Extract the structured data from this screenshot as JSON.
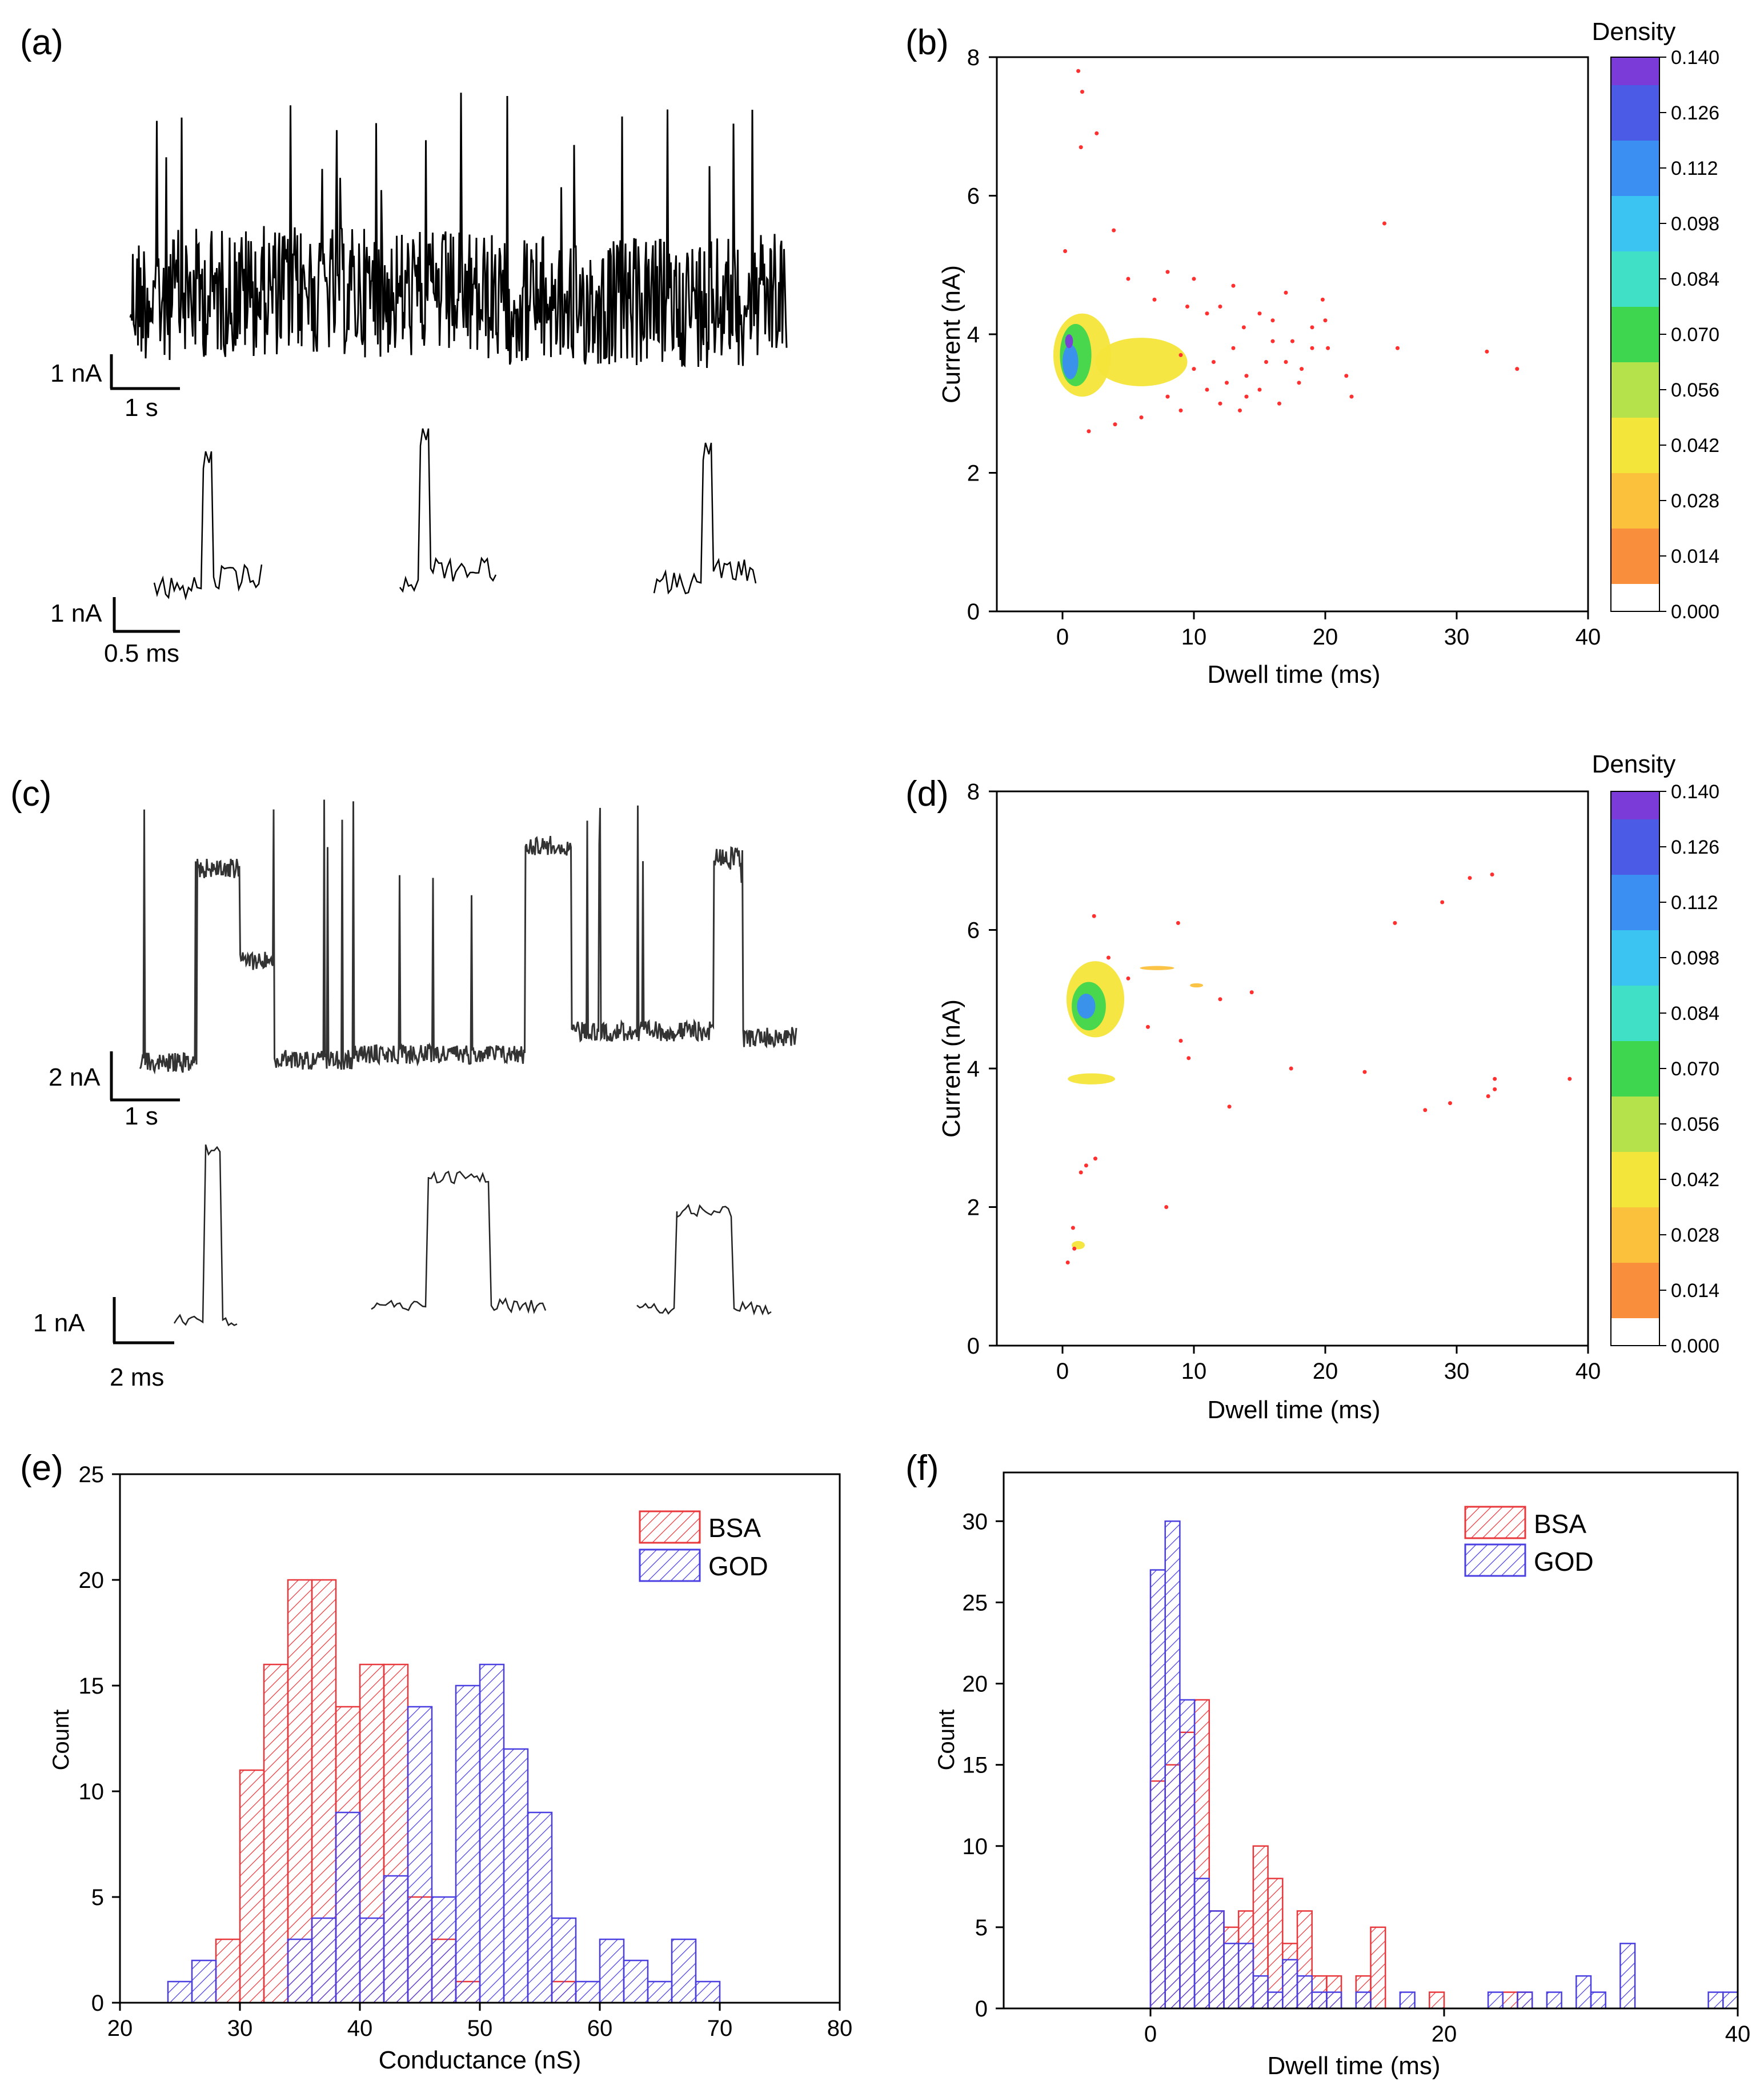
{
  "panels": {
    "a": {
      "label": "(a)"
    },
    "b": {
      "label": "(b)"
    },
    "c": {
      "label": "(c)"
    },
    "d": {
      "label": "(d)"
    },
    "e": {
      "label": "(e)"
    },
    "f": {
      "label": "(f)"
    }
  },
  "colors": {
    "bsa": "#e8383c",
    "god": "#4a3fe0",
    "overlap": "#5a1a7a",
    "trace_a": "#000000",
    "trace_c": "#333333",
    "scatter_point": "#ff3030",
    "dark_point": "#1a1a1a"
  },
  "chart_data": [
    {
      "id": "a",
      "type": "line",
      "description_label": "current trace",
      "scale_bars": {
        "main": {
          "current": "1 nA",
          "time": "1 s"
        },
        "events": {
          "current": "1 nA",
          "time": "0.5 ms"
        }
      }
    },
    {
      "id": "b",
      "type": "heatmap",
      "xlabel": "Dwell time (ms)",
      "ylabel": "Current (nA)",
      "xlim": [
        -5,
        40
      ],
      "ylim": [
        0,
        8
      ],
      "xticks": [
        0,
        10,
        20,
        30,
        40
      ],
      "yticks": [
        0,
        2,
        4,
        6,
        8
      ],
      "colorbar": {
        "title": "Density",
        "ticks": [
          "0.000",
          "0.014",
          "0.028",
          "0.042",
          "0.056",
          "0.070",
          "0.084",
          "0.098",
          "0.112",
          "0.126",
          "0.140"
        ],
        "levels": [
          0,
          0.014,
          0.028,
          0.042,
          0.056,
          0.07,
          0.084,
          0.098,
          0.112,
          0.126,
          0.14
        ]
      },
      "density_blobs": [
        {
          "x": 1.5,
          "y": 3.7,
          "sx": 2.2,
          "sy": 0.6,
          "level": 0.03
        },
        {
          "x": 6,
          "y": 3.6,
          "sx": 3.5,
          "sy": 0.35,
          "level": 0.028
        },
        {
          "x": 1.0,
          "y": 3.7,
          "sx": 1.2,
          "sy": 0.45,
          "level": 0.06
        },
        {
          "x": 0.6,
          "y": 3.6,
          "sx": 0.6,
          "sy": 0.25,
          "level": 0.1
        },
        {
          "x": 0.5,
          "y": 3.9,
          "sx": 0.3,
          "sy": 0.1,
          "level": 0.13
        }
      ],
      "scatter": [
        [
          1.2,
          7.8
        ],
        [
          1.5,
          7.5
        ],
        [
          2.6,
          6.9
        ],
        [
          1.4,
          6.7
        ],
        [
          0.2,
          5.2
        ],
        [
          3.9,
          5.5
        ],
        [
          24.5,
          5.6
        ],
        [
          5,
          4.8
        ],
        [
          8,
          4.9
        ],
        [
          10,
          4.8
        ],
        [
          13,
          4.7
        ],
        [
          17,
          4.6
        ],
        [
          19.8,
          4.5
        ],
        [
          12,
          4.4
        ],
        [
          15,
          4.3
        ],
        [
          20,
          4.2
        ],
        [
          9,
          3.7
        ],
        [
          10,
          3.5
        ],
        [
          11.5,
          3.6
        ],
        [
          13,
          3.8
        ],
        [
          14,
          3.4
        ],
        [
          15,
          3.2
        ],
        [
          16,
          3.9
        ],
        [
          17,
          3.6
        ],
        [
          18,
          3.3
        ],
        [
          19,
          3.8
        ],
        [
          20.2,
          3.8
        ],
        [
          21.6,
          3.4
        ],
        [
          22,
          3.1
        ],
        [
          25.5,
          3.8
        ],
        [
          32.3,
          3.75
        ],
        [
          34.6,
          3.5
        ],
        [
          12,
          3.0
        ],
        [
          13.5,
          2.9
        ],
        [
          9,
          2.9
        ],
        [
          8,
          3.1
        ],
        [
          6,
          2.8
        ],
        [
          4,
          2.7
        ],
        [
          2,
          2.6
        ],
        [
          14,
          3.1
        ],
        [
          16.5,
          3.0
        ],
        [
          18.2,
          3.5
        ],
        [
          11,
          3.2
        ],
        [
          12.5,
          3.3
        ],
        [
          15.5,
          3.6
        ],
        [
          17.5,
          3.9
        ],
        [
          19,
          4.1
        ],
        [
          7,
          4.5
        ],
        [
          9.5,
          4.4
        ],
        [
          11,
          4.3
        ],
        [
          13.8,
          4.1
        ],
        [
          16,
          4.2
        ]
      ]
    },
    {
      "id": "c",
      "type": "line",
      "description_label": "current trace",
      "scale_bars": {
        "main": {
          "current": "2 nA",
          "time": "1 s"
        },
        "events": {
          "current": "1 nA",
          "time": "2 ms"
        }
      }
    },
    {
      "id": "d",
      "type": "heatmap",
      "xlabel": "Dwell time (ms)",
      "ylabel": "Current (nA)",
      "xlim": [
        -5,
        40
      ],
      "ylim": [
        0,
        8
      ],
      "xticks": [
        0,
        10,
        20,
        30,
        40
      ],
      "yticks": [
        0,
        2,
        4,
        6,
        8
      ],
      "colorbar": {
        "title": "Density",
        "ticks": [
          "0.000",
          "0.014",
          "0.028",
          "0.042",
          "0.056",
          "0.070",
          "0.084",
          "0.098",
          "0.112",
          "0.126",
          "0.140"
        ],
        "levels": [
          0,
          0.014,
          0.028,
          0.042,
          0.056,
          0.07,
          0.084,
          0.098,
          0.112,
          0.126,
          0.14
        ]
      },
      "density_blobs": [
        {
          "x": 2.5,
          "y": 5.0,
          "sx": 2.2,
          "sy": 0.55,
          "level": 0.03
        },
        {
          "x": 2.0,
          "y": 4.9,
          "sx": 1.3,
          "sy": 0.35,
          "level": 0.06
        },
        {
          "x": 1.8,
          "y": 4.9,
          "sx": 0.7,
          "sy": 0.18,
          "level": 0.1
        },
        {
          "x": 2.2,
          "y": 3.85,
          "sx": 1.8,
          "sy": 0.08,
          "level": 0.03
        },
        {
          "x": 1.2,
          "y": 1.45,
          "sx": 0.5,
          "sy": 0.06,
          "level": 0.03
        },
        {
          "x": 7.2,
          "y": 5.45,
          "sx": 1.3,
          "sy": 0.03,
          "level": 0.025
        },
        {
          "x": 10.2,
          "y": 5.2,
          "sx": 0.5,
          "sy": 0.03,
          "level": 0.025
        }
      ],
      "scatter": [
        [
          2.4,
          6.2
        ],
        [
          8.8,
          6.1
        ],
        [
          25.3,
          6.1
        ],
        [
          28.9,
          6.4
        ],
        [
          31,
          6.75
        ],
        [
          32.7,
          6.8
        ],
        [
          1.8,
          2.6
        ],
        [
          1.4,
          2.5
        ],
        [
          2.5,
          2.7
        ],
        [
          7.9,
          2.0
        ],
        [
          0.4,
          1.2
        ],
        [
          0.8,
          1.7
        ],
        [
          0.9,
          1.4
        ],
        [
          3.5,
          5.6
        ],
        [
          5,
          5.3
        ],
        [
          6.5,
          4.6
        ],
        [
          9,
          4.4
        ],
        [
          12,
          5
        ],
        [
          14.4,
          5.1
        ],
        [
          17.4,
          4.0
        ],
        [
          23,
          3.95
        ],
        [
          27.6,
          3.4
        ],
        [
          29.5,
          3.5
        ],
        [
          32.4,
          3.6
        ],
        [
          32.9,
          3.7
        ],
        [
          32.9,
          3.85
        ],
        [
          38.6,
          3.85
        ],
        [
          12.7,
          3.45
        ],
        [
          9.6,
          4.15
        ]
      ]
    },
    {
      "id": "e",
      "type": "bar",
      "xlabel": "Conductance (nS)",
      "ylabel": "Count",
      "xlim": [
        20,
        80
      ],
      "ylim": [
        0,
        25
      ],
      "xticks": [
        20,
        30,
        40,
        50,
        60,
        70,
        80
      ],
      "yticks": [
        0,
        5,
        10,
        15,
        20,
        25
      ],
      "bin_width": 2,
      "legend": [
        "BSA",
        "GOD"
      ],
      "legend_position": "top-right",
      "series": [
        {
          "name": "BSA",
          "bins": [
            [
              28,
              3
            ],
            [
              30,
              11
            ],
            [
              32,
              16
            ],
            [
              34,
              20
            ],
            [
              36,
              20
            ],
            [
              38,
              14
            ],
            [
              40,
              16
            ],
            [
              42,
              16
            ],
            [
              44,
              5
            ],
            [
              46,
              3
            ],
            [
              48,
              1
            ],
            [
              56,
              1
            ]
          ]
        },
        {
          "name": "GOD",
          "bins": [
            [
              24,
              1
            ],
            [
              26,
              2
            ],
            [
              34,
              3
            ],
            [
              36,
              4
            ],
            [
              38,
              9
            ],
            [
              40,
              4
            ],
            [
              42,
              6
            ],
            [
              44,
              14
            ],
            [
              46,
              5
            ],
            [
              48,
              15
            ],
            [
              50,
              16
            ],
            [
              52,
              12
            ],
            [
              54,
              9
            ],
            [
              56,
              4
            ],
            [
              58,
              1
            ],
            [
              60,
              3
            ],
            [
              62,
              2
            ],
            [
              64,
              1
            ],
            [
              66,
              3
            ],
            [
              68,
              1
            ]
          ]
        }
      ]
    },
    {
      "id": "f",
      "type": "bar",
      "xlabel": "Dwell time (ms)",
      "ylabel": "Count",
      "xlim": [
        -10,
        40
      ],
      "ylim": [
        0,
        33
      ],
      "xticks": [
        0,
        20,
        40
      ],
      "yticks": [
        0,
        5,
        10,
        15,
        20,
        25,
        30
      ],
      "bin_width": 1,
      "legend": [
        "BSA",
        "GOD"
      ],
      "legend_position": "top-right",
      "series": [
        {
          "name": "BSA",
          "bins": [
            [
              0,
              14
            ],
            [
              1,
              15
            ],
            [
              2,
              17
            ],
            [
              3,
              19
            ],
            [
              4,
              6
            ],
            [
              5,
              5
            ],
            [
              6,
              6
            ],
            [
              7,
              10
            ],
            [
              8,
              8
            ],
            [
              9,
              4
            ],
            [
              10,
              6
            ],
            [
              11,
              2
            ],
            [
              12,
              2
            ],
            [
              14,
              2
            ],
            [
              15,
              5
            ],
            [
              19,
              1
            ],
            [
              24,
              1
            ],
            [
              25,
              1
            ]
          ]
        },
        {
          "name": "GOD",
          "bins": [
            [
              0,
              27
            ],
            [
              1,
              30
            ],
            [
              2,
              19
            ],
            [
              3,
              8
            ],
            [
              4,
              6
            ],
            [
              5,
              4
            ],
            [
              6,
              4
            ],
            [
              7,
              2
            ],
            [
              8,
              1
            ],
            [
              9,
              3
            ],
            [
              10,
              2
            ],
            [
              11,
              1
            ],
            [
              12,
              1
            ],
            [
              14,
              1
            ],
            [
              17,
              1
            ],
            [
              23,
              1
            ],
            [
              25,
              1
            ],
            [
              27,
              1
            ],
            [
              29,
              2
            ],
            [
              30,
              1
            ],
            [
              32,
              4
            ],
            [
              38,
              1
            ],
            [
              39,
              1
            ]
          ]
        }
      ]
    }
  ]
}
